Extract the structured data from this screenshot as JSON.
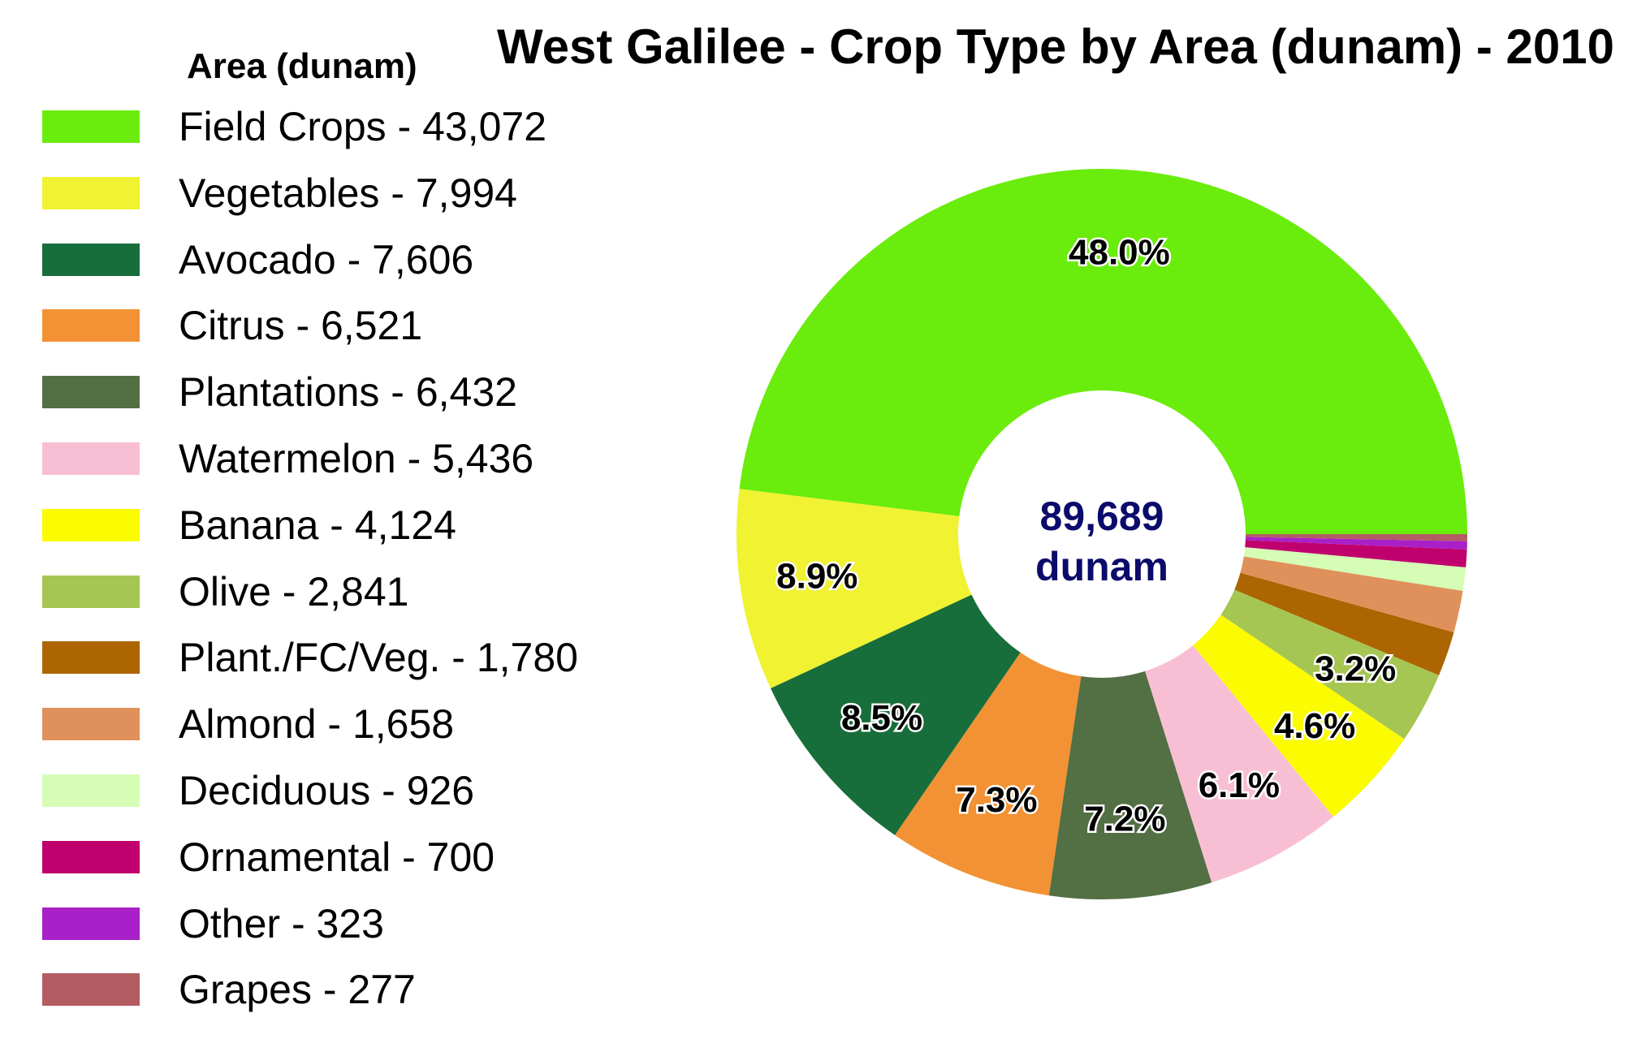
{
  "chart_data": {
    "type": "pie",
    "title": "West Galilee - Crop Type by Area (dunam) - 2010",
    "legend_title": "Area (dunam)",
    "legend_position": "left",
    "donut": true,
    "center_value": "89,689",
    "center_unit": "dunam",
    "center_color": "#0b0b6b",
    "slices": [
      {
        "name": "Field Crops",
        "value": 43072,
        "legend_label": "Field Crops - 43,072",
        "percent_label": "48.0%",
        "color": "#6aec0c"
      },
      {
        "name": "Vegetables",
        "value": 7994,
        "legend_label": "Vegetables - 7,994",
        "percent_label": "8.9%",
        "color": "#f0f232"
      },
      {
        "name": "Avocado",
        "value": 7606,
        "legend_label": "Avocado - 7,606",
        "percent_label": "8.5%",
        "color": "#186e3a"
      },
      {
        "name": "Citrus",
        "value": 6521,
        "legend_label": "Citrus - 6,521",
        "percent_label": "7.3%",
        "color": "#f29234"
      },
      {
        "name": "Plantations",
        "value": 6432,
        "legend_label": "Plantations - 6,432",
        "percent_label": "7.2%",
        "color": "#536f44"
      },
      {
        "name": "Watermelon",
        "value": 5436,
        "legend_label": "Watermelon - 5,436",
        "percent_label": "6.1%",
        "color": "#f8bfd4"
      },
      {
        "name": "Banana",
        "value": 4124,
        "legend_label": "Banana - 4,124",
        "percent_label": "4.6%",
        "color": "#fbfb02"
      },
      {
        "name": "Olive",
        "value": 2841,
        "legend_label": "Olive - 2,841",
        "percent_label": "3.2%",
        "color": "#a6c653"
      },
      {
        "name": "Plant./FC/Veg.",
        "value": 1780,
        "legend_label": "Plant./FC/Veg. - 1,780",
        "percent_label": "",
        "color": "#ac6501"
      },
      {
        "name": "Almond",
        "value": 1658,
        "legend_label": "Almond - 1,658",
        "percent_label": "",
        "color": "#e0915b"
      },
      {
        "name": "Deciduous",
        "value": 926,
        "legend_label": "Deciduous - 926",
        "percent_label": "",
        "color": "#d5fdb5"
      },
      {
        "name": "Ornamental",
        "value": 700,
        "legend_label": "Ornamental - 700",
        "percent_label": "",
        "color": "#c0006c"
      },
      {
        "name": "Other",
        "value": 323,
        "legend_label": "Other - 323",
        "percent_label": "",
        "color": "#a920c8"
      },
      {
        "name": "Grapes",
        "value": 277,
        "legend_label": "Grapes - 277",
        "percent_label": "",
        "color": "#b35c62"
      }
    ]
  }
}
